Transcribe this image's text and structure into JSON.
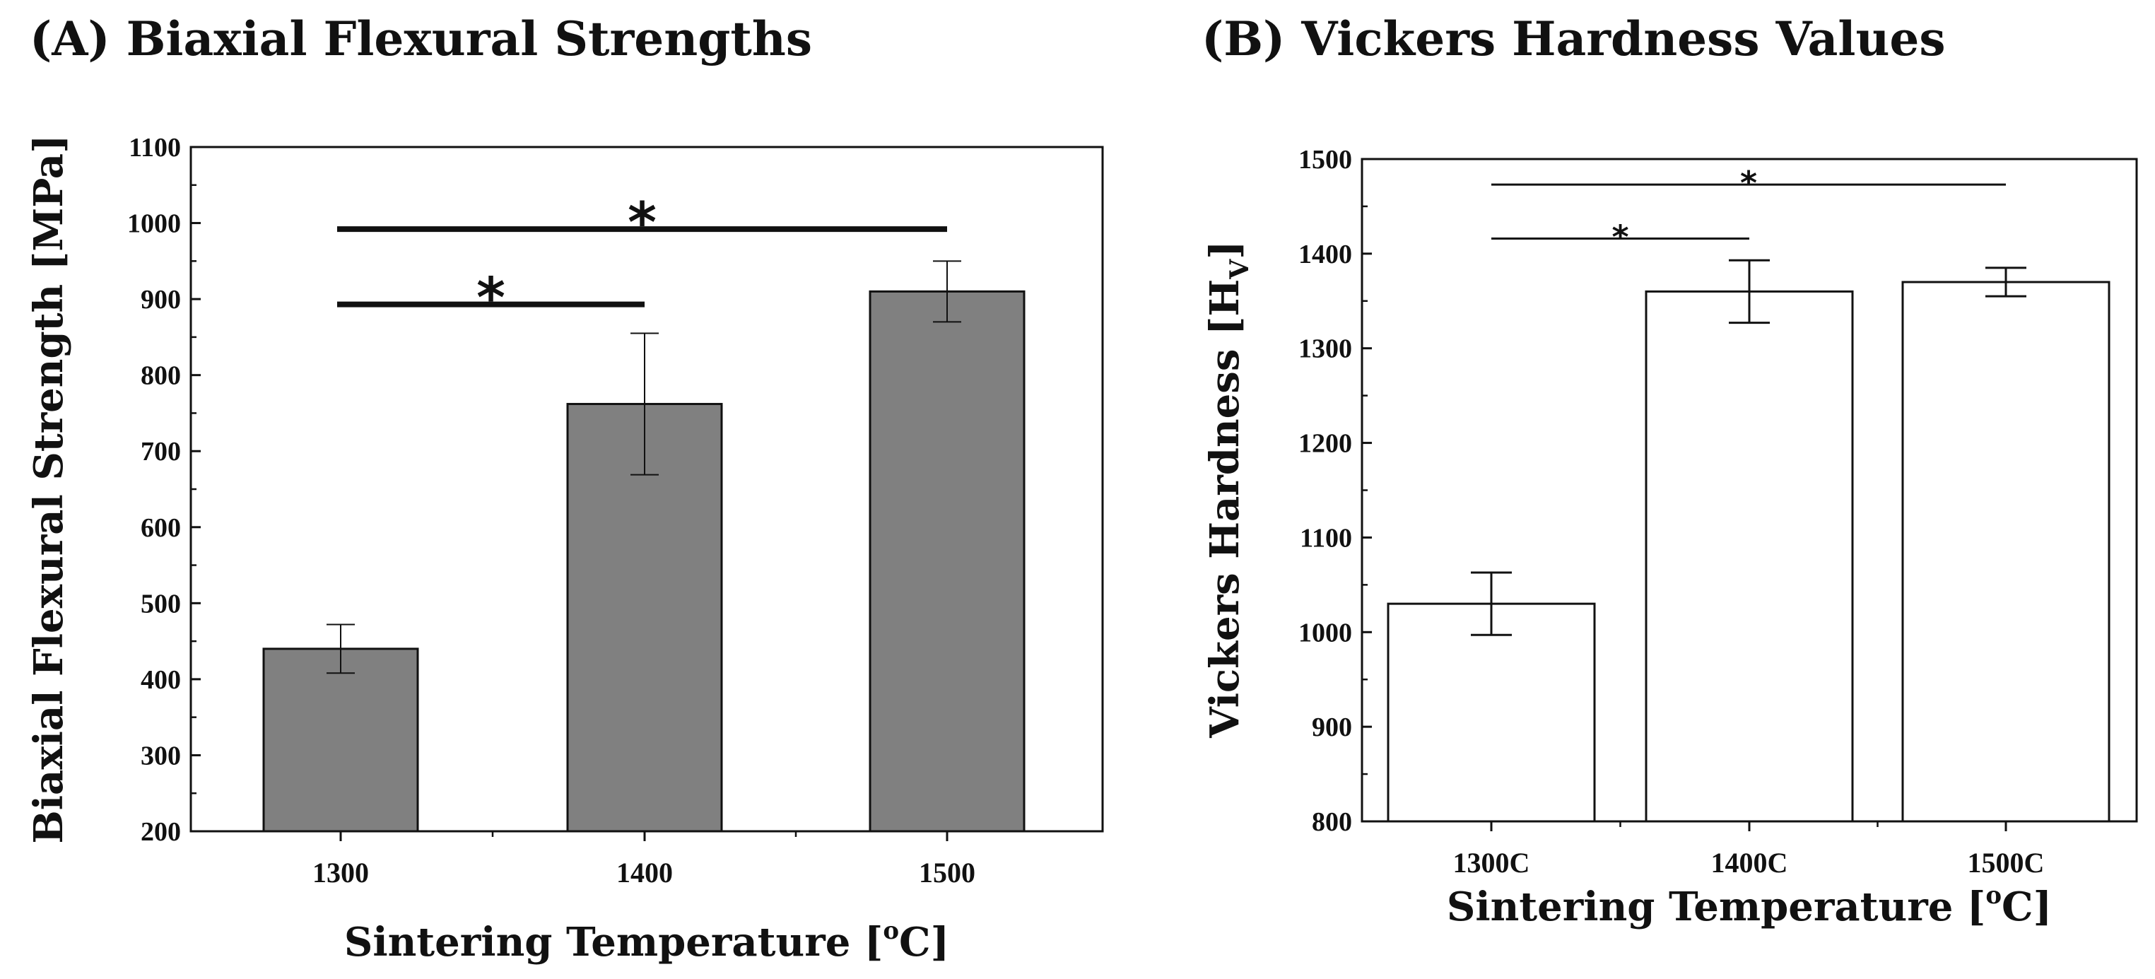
{
  "chart_data": [
    {
      "panel": "A",
      "type": "bar",
      "title": "(A) Biaxial Flexural Strengths",
      "xlabel": "Sintering Temperature [",
      "xlabel_sup": "o",
      "xlabel_end": "C]",
      "ylabel": "Biaxial Flexural Strength [MPa]",
      "categories": [
        "1300",
        "1400",
        "1500"
      ],
      "values": [
        440,
        762,
        910
      ],
      "errors": [
        32,
        93,
        40
      ],
      "ylim": [
        200,
        1100
      ],
      "yticks": [
        200,
        300,
        400,
        500,
        600,
        700,
        800,
        900,
        1000,
        1100
      ],
      "bar_color": "#808080",
      "grid": false,
      "significance": [
        {
          "from": 0,
          "to": 1,
          "level": 893,
          "label": "*"
        },
        {
          "from": 0,
          "to": 2,
          "level": 992,
          "label": "*"
        }
      ]
    },
    {
      "panel": "B",
      "type": "bar",
      "title": "(B) Vickers Hardness Values",
      "xlabel": "Sintering Temperature [",
      "xlabel_sup": "o",
      "xlabel_end": "C]",
      "ylabel": "Vickers Hardness [H",
      "ylabel_sub": "V",
      "ylabel_end": "]",
      "categories": [
        "1300C",
        "1400C",
        "1500C"
      ],
      "values": [
        1030,
        1360,
        1370
      ],
      "errors": [
        33,
        33,
        15
      ],
      "ylim": [
        800,
        1500
      ],
      "yticks": [
        800,
        900,
        1000,
        1100,
        1200,
        1300,
        1400,
        1500
      ],
      "bar_color": "#ffffff",
      "grid": false,
      "significance": [
        {
          "from": 0,
          "to": 1,
          "level": 1416,
          "label": "*"
        },
        {
          "from": 0,
          "to": 2,
          "level": 1473,
          "label": "*"
        }
      ]
    }
  ]
}
